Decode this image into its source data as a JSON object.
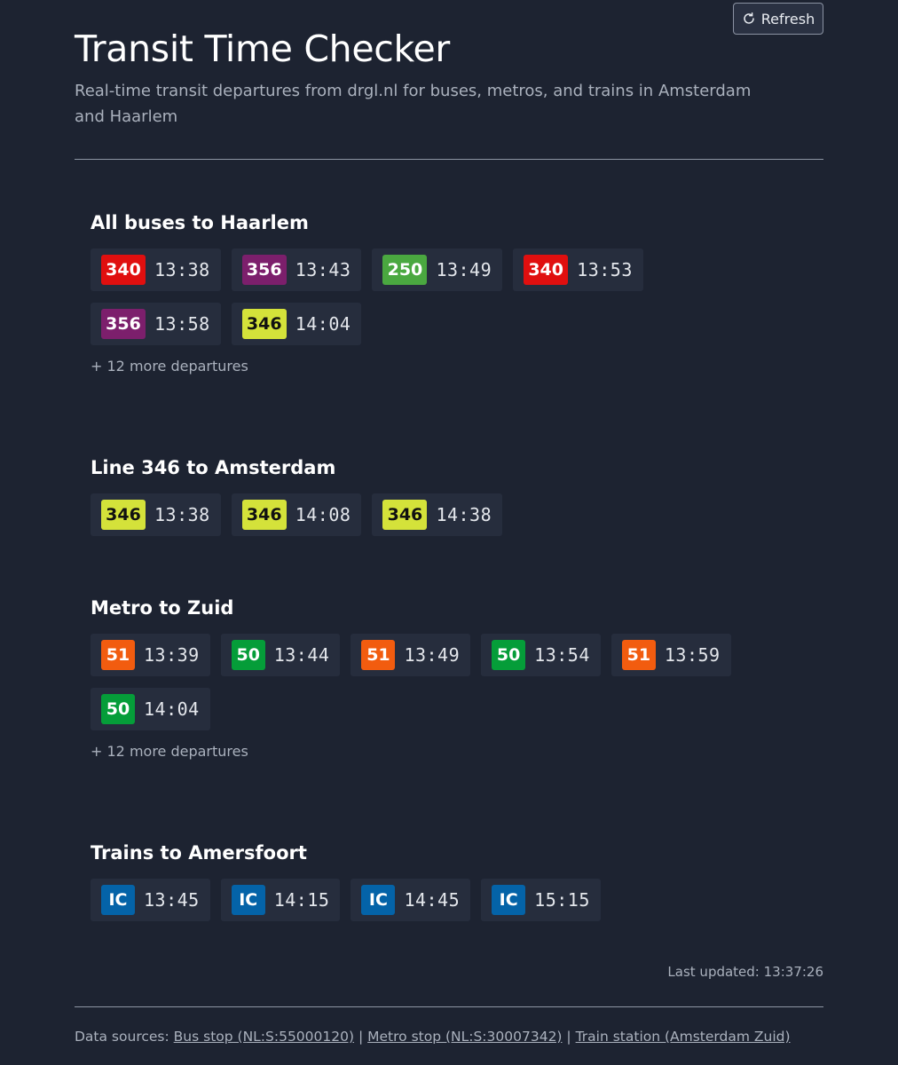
{
  "header": {
    "title": "Transit Time Checker",
    "subtitle": "Real-time transit departures from drgl.nl for buses, metros, and trains in Amsterdam and Haarlem",
    "refresh_label": "Refresh"
  },
  "colors": {
    "340": "#e00f0f",
    "356": "#7c1f6c",
    "250": "#4aa840",
    "346": "#d4e23a",
    "51": "#f25c0f",
    "50": "#059d39",
    "IC": "#0463a8"
  },
  "sections": [
    {
      "title": "All buses to Haarlem",
      "departures": [
        {
          "line": "340",
          "time": "13:38"
        },
        {
          "line": "356",
          "time": "13:43"
        },
        {
          "line": "250",
          "time": "13:49"
        },
        {
          "line": "340",
          "time": "13:53"
        },
        {
          "line": "356",
          "time": "13:58"
        },
        {
          "line": "346",
          "time": "14:04"
        }
      ],
      "more": "+ 12 more departures"
    },
    {
      "title": "Line 346 to Amsterdam",
      "departures": [
        {
          "line": "346",
          "time": "13:38"
        },
        {
          "line": "346",
          "time": "14:08"
        },
        {
          "line": "346",
          "time": "14:38"
        }
      ]
    },
    {
      "title": "Metro to Zuid",
      "departures": [
        {
          "line": "51",
          "time": "13:39"
        },
        {
          "line": "50",
          "time": "13:44"
        },
        {
          "line": "51",
          "time": "13:49"
        },
        {
          "line": "50",
          "time": "13:54"
        },
        {
          "line": "51",
          "time": "13:59"
        },
        {
          "line": "50",
          "time": "14:04"
        }
      ],
      "more": "+ 12 more departures"
    },
    {
      "title": "Trains to Amersfoort",
      "departures": [
        {
          "line": "IC",
          "time": "13:45"
        },
        {
          "line": "IC",
          "time": "14:15"
        },
        {
          "line": "IC",
          "time": "14:45"
        },
        {
          "line": "IC",
          "time": "15:15"
        }
      ]
    }
  ],
  "footer": {
    "last_updated": "Last updated: 13:37:26",
    "sources_prefix": "Data sources:",
    "separator": "|",
    "bus_link": "Bus stop (NL:S:55000120)",
    "metro_link": "Metro stop (NL:S:30007342)",
    "train_link": "Train station (Amsterdam Zuid)"
  }
}
